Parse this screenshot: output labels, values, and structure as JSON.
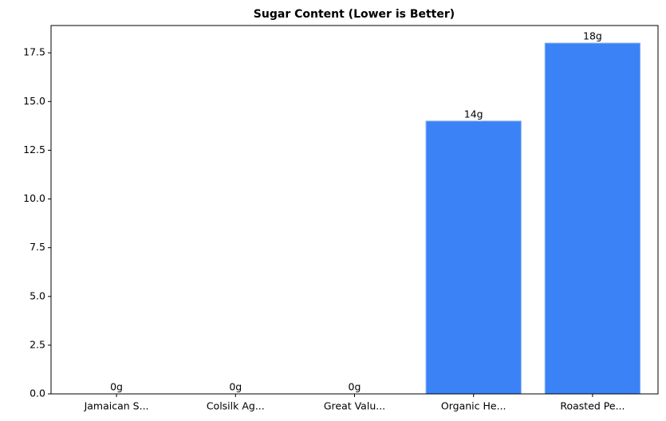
{
  "chart_data": {
    "type": "bar",
    "title": "Sugar Content (Lower is Better)",
    "categories": [
      "Jamaican S...",
      "Colsilk Ag...",
      "Great Valu...",
      "Organic He...",
      "Roasted Pe..."
    ],
    "values": [
      0,
      0,
      0,
      14,
      18
    ],
    "value_labels": [
      "0g",
      "0g",
      "0g",
      "14g",
      "18g"
    ],
    "color": "#3b82f6",
    "ylim": [
      0,
      18.9
    ],
    "yticks": [
      {
        "value": 0,
        "label": "0.0"
      },
      2.5,
      {
        "value": 5,
        "label": "5.0"
      },
      7.5,
      {
        "value": 10,
        "label": "10.0"
      },
      12.5,
      {
        "value": 15,
        "label": "15.0"
      },
      17.5
    ],
    "grid": false
  }
}
